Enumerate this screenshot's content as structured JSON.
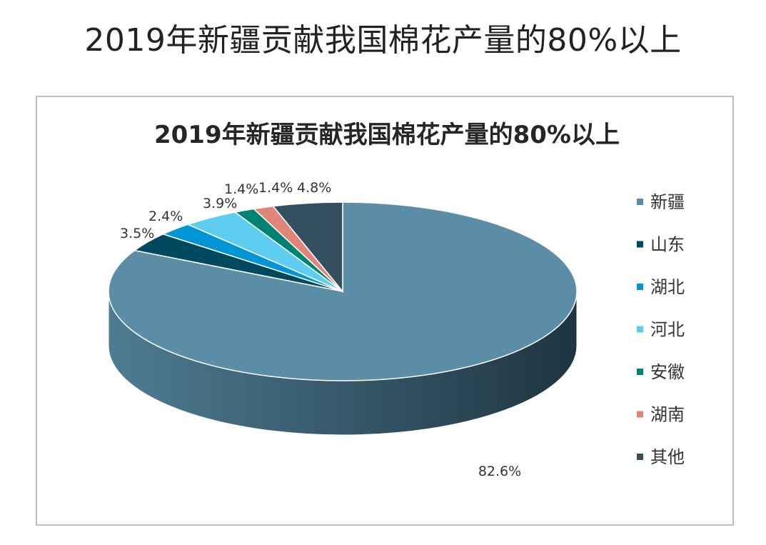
{
  "page": {
    "title": "2019年新疆贡献我国棉花产量的80%以上"
  },
  "chart_data": {
    "type": "pie",
    "title": "2019年新疆贡献我国棉花产量的80%以上",
    "style": "3d",
    "legend_position": "right",
    "categories": [
      "新疆",
      "山东",
      "湖北",
      "河北",
      "安徽",
      "湖南",
      "其他"
    ],
    "values": [
      82.6,
      3.5,
      2.4,
      3.9,
      1.4,
      1.4,
      4.8
    ],
    "labels": [
      "82.6%",
      "3.5%",
      "2.4%",
      "3.9%",
      "1.4%",
      "1.4%",
      "4.8%"
    ],
    "colors": [
      "#5b8ea6",
      "#00495e",
      "#0096d6",
      "#5fcdf0",
      "#008272",
      "#e08577",
      "#344f5f"
    ]
  }
}
